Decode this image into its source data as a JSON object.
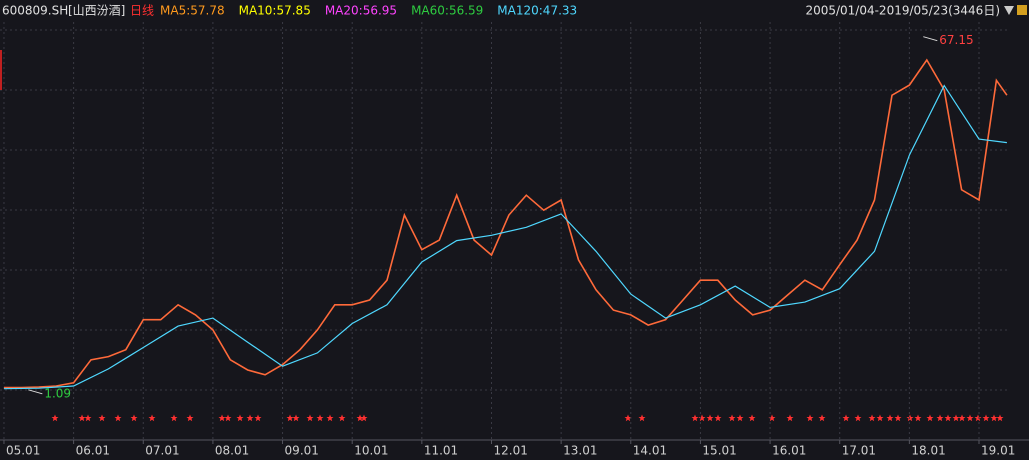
{
  "header": {
    "code": "600809.SH",
    "name": "[山西汾酒]",
    "period": "日线",
    "ma": [
      {
        "text": "MA5:57.78",
        "color": "#ff9a1e"
      },
      {
        "text": "MA10:57.85",
        "color": "#ffff00"
      },
      {
        "text": "MA20:56.95",
        "color": "#ff44ff"
      },
      {
        "text": "MA60:56.59",
        "color": "#2ecc40"
      },
      {
        "text": "MA120:47.33",
        "color": "#4fd8ff"
      }
    ],
    "range": "2005/01/04-2019/05/23(3446日)"
  },
  "chart_data": {
    "type": "line",
    "xlim": [
      4.943,
      19.445
    ],
    "ylim": [
      -8.3,
      69.9
    ],
    "xticks": [
      {
        "value": 5,
        "label": "05.01"
      },
      {
        "value": 6,
        "label": "06.01"
      },
      {
        "value": 7,
        "label": "07.01"
      },
      {
        "value": 8,
        "label": "08.01"
      },
      {
        "value": 9,
        "label": "09.01"
      },
      {
        "value": 10,
        "label": "10.01"
      },
      {
        "value": 11,
        "label": "11.01"
      },
      {
        "value": 12,
        "label": "12.01"
      },
      {
        "value": 13,
        "label": "13.01"
      },
      {
        "value": 14,
        "label": "14.01"
      },
      {
        "value": 15,
        "label": "15.01"
      },
      {
        "value": 16,
        "label": "16.01"
      },
      {
        "value": 17,
        "label": "17.01"
      },
      {
        "value": 18,
        "label": "18.01"
      },
      {
        "value": 19,
        "label": "19.01"
      }
    ],
    "series": [
      {
        "name": "price",
        "color": "#ff6a3a",
        "x": [
          5,
          5.25,
          5.5,
          5.75,
          6,
          6.25,
          6.5,
          6.75,
          7,
          7.25,
          7.5,
          7.75,
          8,
          8.25,
          8.5,
          8.75,
          9,
          9.25,
          9.5,
          9.75,
          10,
          10.25,
          10.5,
          10.75,
          11,
          11.25,
          11.5,
          11.75,
          12,
          12.25,
          12.5,
          12.75,
          13,
          13.25,
          13.5,
          13.75,
          14,
          14.25,
          14.5,
          14.75,
          15,
          15.25,
          15.5,
          15.75,
          16,
          16.25,
          16.5,
          16.75,
          17,
          17.25,
          17.5,
          17.75,
          18,
          18.25,
          18.5,
          18.75,
          19,
          19.25,
          19.4
        ],
        "values": [
          1.5,
          1.5,
          1.6,
          1.8,
          2.4,
          6.7,
          7.3,
          8.6,
          14.2,
          14.2,
          17.0,
          15.1,
          12.3,
          6.7,
          4.8,
          3.9,
          5.8,
          8.6,
          12.3,
          17.0,
          17.0,
          17.9,
          21.6,
          33.8,
          27.3,
          29.1,
          37.5,
          29.1,
          26.3,
          33.8,
          37.5,
          34.7,
          36.6,
          25.4,
          19.8,
          16.0,
          15.1,
          13.2,
          14.2,
          17.9,
          21.6,
          21.6,
          17.9,
          15.1,
          16.0,
          18.8,
          21.6,
          19.8,
          24.5,
          29.1,
          36.6,
          56.2,
          58.1,
          62.8,
          57.2,
          38.5,
          36.6,
          59.0,
          56.2
        ]
      },
      {
        "name": "MA120",
        "color": "#4fd8ff",
        "x": [
          5,
          5.5,
          6,
          6.5,
          7,
          7.5,
          8,
          8.5,
          9,
          9.5,
          10,
          10.5,
          11,
          11.5,
          12,
          12.5,
          13,
          13.5,
          14,
          14.5,
          15,
          15.5,
          16,
          16.5,
          17,
          17.5,
          18,
          18.5,
          19,
          19.4
        ],
        "values": [
          1.3,
          1.4,
          1.8,
          5.0,
          9.0,
          13.0,
          14.5,
          10.0,
          5.5,
          8.0,
          13.5,
          17.0,
          25.0,
          29.0,
          30.0,
          31.5,
          34.0,
          27.0,
          19.0,
          14.5,
          17.0,
          20.5,
          16.5,
          17.5,
          20.0,
          27.0,
          45.0,
          58.0,
          48.0,
          47.33
        ]
      }
    ],
    "annotations": [
      {
        "x": 18.2,
        "value": 67.15,
        "color": "#ff4040"
      },
      {
        "x": 5.35,
        "value": 1.09,
        "color": "#2ecc40"
      }
    ]
  }
}
